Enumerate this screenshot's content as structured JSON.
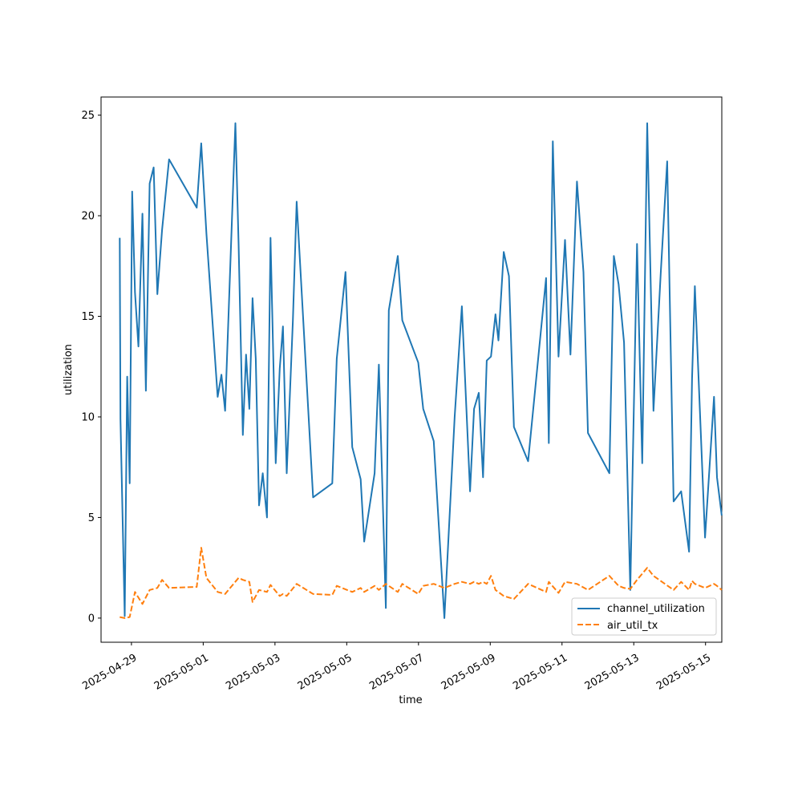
{
  "chart_data": {
    "type": "line",
    "title": "",
    "xlabel": "time",
    "ylabel": "utilization",
    "x_type": "datetime",
    "xlim": [
      "2025-04-28T03:40",
      "2025-05-15T10:53"
    ],
    "ylim": [
      -1.2,
      25.9
    ],
    "x_ticks": [
      "2025-04-29",
      "2025-05-01",
      "2025-05-03",
      "2025-05-05",
      "2025-05-07",
      "2025-05-09",
      "2025-05-11",
      "2025-05-13",
      "2025-05-15"
    ],
    "y_ticks": [
      0,
      5,
      10,
      15,
      20,
      25
    ],
    "grid": false,
    "legend_position": "lower-right",
    "series": [
      {
        "name": "channel_utilization",
        "color": "#1f77b4",
        "line_style": "solid",
        "x": [
          "2025-04-28T16:10",
          "2025-04-28T16:40",
          "2025-04-28T19:30",
          "2025-04-28T21:10",
          "2025-04-28T22:50",
          "2025-04-29T00:30",
          "2025-04-29T02:20",
          "2025-04-29T04:40",
          "2025-04-29T07:20",
          "2025-04-29T09:40",
          "2025-04-29T12:10",
          "2025-04-29T14:50",
          "2025-04-29T17:20",
          "2025-04-29T20:30",
          "2025-04-30T01:10",
          "2025-04-30T19:40",
          "2025-04-30T22:40",
          "2025-05-01T02:10",
          "2025-05-01T09:40",
          "2025-05-01T12:10",
          "2025-05-01T14:40",
          "2025-05-01T21:30",
          "2025-05-01T23:40",
          "2025-05-02T02:30",
          "2025-05-02T04:40",
          "2025-05-02T06:50",
          "2025-05-02T09:00",
          "2025-05-02T11:10",
          "2025-05-02T13:20",
          "2025-05-02T15:50",
          "2025-05-02T18:40",
          "2025-05-02T21:00",
          "2025-05-03T00:30",
          "2025-05-03T03:10",
          "2025-05-03T05:20",
          "2025-05-03T07:50",
          "2025-05-03T12:00",
          "2025-05-03T14:30",
          "2025-05-04T01:30",
          "2025-05-04T14:20",
          "2025-05-04T17:20",
          "2025-05-04T23:10",
          "2025-05-05T03:40",
          "2025-05-05T09:20",
          "2025-05-05T11:40",
          "2025-05-05T18:40",
          "2025-05-05T21:30",
          "2025-05-06T02:10",
          "2025-05-06T04:10",
          "2025-05-06T10:10",
          "2025-05-06T13:10",
          "2025-05-06T23:50",
          "2025-05-07T03:10",
          "2025-05-07T10:10",
          "2025-05-07T17:20",
          "2025-05-08T00:10",
          "2025-05-08T05:00",
          "2025-05-08T10:30",
          "2025-05-08T13:10",
          "2025-05-08T16:20",
          "2025-05-08T19:10",
          "2025-05-08T21:40",
          "2025-05-09T00:30",
          "2025-05-09T03:30",
          "2025-05-09T05:30",
          "2025-05-09T09:00",
          "2025-05-09T12:30",
          "2025-05-09T15:50",
          "2025-05-10T01:20",
          "2025-05-10T13:20",
          "2025-05-10T15:10",
          "2025-05-10T17:50",
          "2025-05-10T21:40",
          "2025-05-11T02:00",
          "2025-05-11T05:40",
          "2025-05-11T10:00",
          "2025-05-11T14:20",
          "2025-05-11T17:20",
          "2025-05-12T07:40",
          "2025-05-12T10:40",
          "2025-05-12T13:50",
          "2025-05-12T17:30",
          "2025-05-12T21:40",
          "2025-05-13T02:10",
          "2025-05-13T05:40",
          "2025-05-13T09:00",
          "2025-05-13T13:10",
          "2025-05-13T18:00",
          "2025-05-13T22:20",
          "2025-05-14T02:40",
          "2025-05-14T07:40",
          "2025-05-14T13:00",
          "2025-05-14T15:00",
          "2025-05-14T16:50",
          "2025-05-14T23:40",
          "2025-05-15T05:40",
          "2025-05-15T07:40",
          "2025-05-15T10:50"
        ],
        "y": [
          18.9,
          9.9,
          0.1,
          12.0,
          6.7,
          21.2,
          16.2,
          13.5,
          20.1,
          11.3,
          21.6,
          22.4,
          16.1,
          19.3,
          22.8,
          20.4,
          23.6,
          19.1,
          11.0,
          12.1,
          10.3,
          24.6,
          18.6,
          9.1,
          13.1,
          10.4,
          15.9,
          12.9,
          5.6,
          7.2,
          5.0,
          18.9,
          7.7,
          12.4,
          14.5,
          7.2,
          14.8,
          20.7,
          6.0,
          6.7,
          12.9,
          17.2,
          8.5,
          6.9,
          3.8,
          7.2,
          12.6,
          0.5,
          15.3,
          18.0,
          14.8,
          12.7,
          10.4,
          8.8,
          0.0,
          10.0,
          15.5,
          6.3,
          10.4,
          11.2,
          7.0,
          12.8,
          13.0,
          15.1,
          13.8,
          18.2,
          17.0,
          9.5,
          7.8,
          16.9,
          8.7,
          23.7,
          13.0,
          18.8,
          13.1,
          21.7,
          17.2,
          9.2,
          7.2,
          18.0,
          16.6,
          13.7,
          1.4,
          18.6,
          7.7,
          24.6,
          10.3,
          17.1,
          22.7,
          5.8,
          6.3,
          3.3,
          11.9,
          16.5,
          4.0,
          11.0,
          7.0,
          5.1
        ]
      },
      {
        "name": "air_util_tx",
        "color": "#ff7f0e",
        "line_style": "dashed",
        "x": [
          "2025-04-28T16:10",
          "2025-04-28T19:30",
          "2025-04-28T22:50",
          "2025-04-29T02:20",
          "2025-04-29T07:20",
          "2025-04-29T12:10",
          "2025-04-29T17:20",
          "2025-04-29T20:30",
          "2025-04-30T01:10",
          "2025-04-30T19:40",
          "2025-04-30T22:40",
          "2025-05-01T02:10",
          "2025-05-01T09:40",
          "2025-05-01T14:40",
          "2025-05-01T23:40",
          "2025-05-02T02:30",
          "2025-05-02T06:50",
          "2025-05-02T09:00",
          "2025-05-02T13:20",
          "2025-05-02T18:40",
          "2025-05-02T21:00",
          "2025-05-03T03:10",
          "2025-05-03T05:20",
          "2025-05-03T07:50",
          "2025-05-03T14:30",
          "2025-05-04T01:30",
          "2025-05-04T14:20",
          "2025-05-04T17:20",
          "2025-05-05T03:40",
          "2025-05-05T09:20",
          "2025-05-05T11:40",
          "2025-05-05T18:40",
          "2025-05-05T21:30",
          "2025-05-06T02:10",
          "2025-05-06T04:10",
          "2025-05-06T10:10",
          "2025-05-06T13:10",
          "2025-05-06T23:50",
          "2025-05-07T03:10",
          "2025-05-07T10:10",
          "2025-05-07T17:20",
          "2025-05-08T00:10",
          "2025-05-08T05:00",
          "2025-05-08T10:30",
          "2025-05-08T13:10",
          "2025-05-08T16:20",
          "2025-05-08T19:10",
          "2025-05-08T21:40",
          "2025-05-09T00:30",
          "2025-05-09T03:30",
          "2025-05-09T09:00",
          "2025-05-09T15:50",
          "2025-05-10T01:20",
          "2025-05-10T13:20",
          "2025-05-10T15:10",
          "2025-05-10T21:40",
          "2025-05-11T02:00",
          "2025-05-11T10:00",
          "2025-05-11T17:20",
          "2025-05-12T07:40",
          "2025-05-12T13:50",
          "2025-05-12T17:30",
          "2025-05-12T21:40",
          "2025-05-13T02:10",
          "2025-05-13T09:00",
          "2025-05-13T13:10",
          "2025-05-14T02:40",
          "2025-05-14T07:40",
          "2025-05-14T13:00",
          "2025-05-14T15:00",
          "2025-05-14T16:50",
          "2025-05-14T23:40",
          "2025-05-15T05:40",
          "2025-05-15T07:40",
          "2025-05-15T10:50"
        ],
        "y": [
          0.05,
          0.0,
          0.05,
          1.3,
          0.7,
          1.4,
          1.5,
          1.9,
          1.5,
          1.55,
          3.5,
          2.0,
          1.3,
          1.2,
          2.0,
          1.9,
          1.8,
          0.8,
          1.4,
          1.3,
          1.65,
          1.1,
          1.2,
          1.1,
          1.7,
          1.2,
          1.15,
          1.6,
          1.3,
          1.5,
          1.3,
          1.6,
          1.4,
          1.7,
          1.6,
          1.3,
          1.7,
          1.2,
          1.6,
          1.7,
          1.5,
          1.7,
          1.8,
          1.7,
          1.8,
          1.7,
          1.8,
          1.7,
          2.1,
          1.4,
          1.1,
          0.95,
          1.7,
          1.3,
          1.8,
          1.25,
          1.8,
          1.7,
          1.4,
          2.1,
          1.6,
          1.5,
          1.45,
          1.9,
          2.5,
          2.1,
          1.4,
          1.8,
          1.4,
          1.85,
          1.7,
          1.5,
          1.7,
          1.6,
          1.4
        ]
      }
    ]
  }
}
